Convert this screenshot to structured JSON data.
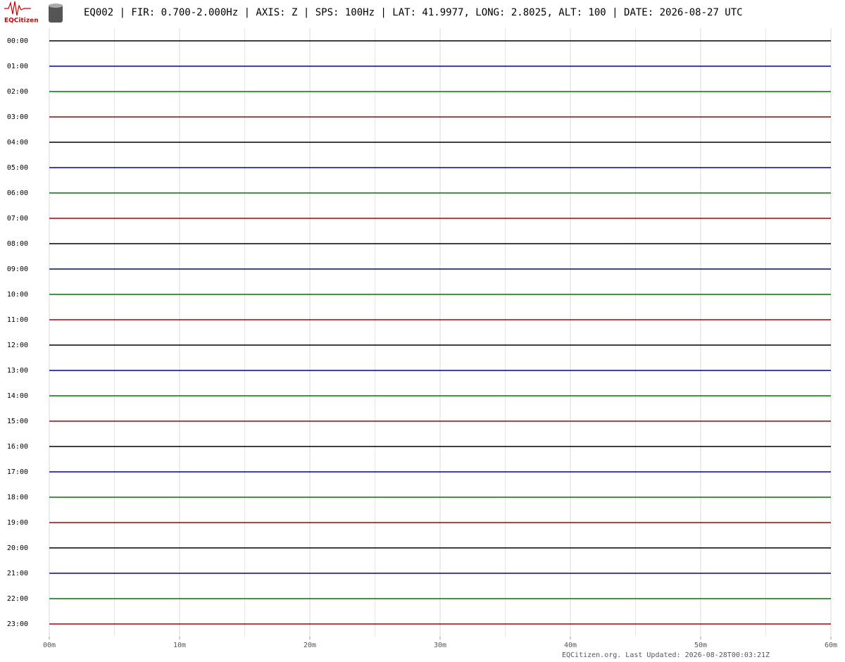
{
  "chart_data": {
    "type": "helicorder",
    "title": "EQ002 | FIR: 0.700-2.000Hz | AXIS: Z | SPS: 100Hz | LAT: 41.9977, LONG: 2.8025, ALT: 100 | DATE: 2026-08-27 UTC",
    "logo_text": "EQCitizen",
    "rows": [
      "00:00",
      "01:00",
      "02:00",
      "03:00",
      "04:00",
      "05:00",
      "06:00",
      "07:00",
      "08:00",
      "09:00",
      "10:00",
      "11:00",
      "12:00",
      "13:00",
      "14:00",
      "15:00",
      "16:00",
      "17:00",
      "18:00",
      "19:00",
      "20:00",
      "21:00",
      "22:00",
      "23:00"
    ],
    "row_colors": [
      "#000000",
      "#0000aa",
      "#007700",
      "#aa0000",
      "#000000",
      "#0000aa",
      "#007700",
      "#aa0000",
      "#000000",
      "#0000aa",
      "#007700",
      "#aa0000",
      "#000000",
      "#0000aa",
      "#007700",
      "#aa0000",
      "#000000",
      "#0000aa",
      "#007700",
      "#aa0000",
      "#000000",
      "#0000aa",
      "#007700",
      "#aa0000"
    ],
    "xlim": [
      0,
      60
    ],
    "xticks": [
      {
        "value": 0,
        "label": "00m"
      },
      {
        "value": 10,
        "label": "10m"
      },
      {
        "value": 20,
        "label": "20m"
      },
      {
        "value": 30,
        "label": "30m"
      },
      {
        "value": 40,
        "label": "40m"
      },
      {
        "value": 50,
        "label": "50m"
      },
      {
        "value": 60,
        "label": "60m"
      }
    ],
    "xminorticks": [
      5,
      15,
      25,
      35,
      45,
      55
    ],
    "grid": true,
    "footer": "EQCitizen.org. Last Updated: 2026-08-28T00:03:21Z"
  }
}
